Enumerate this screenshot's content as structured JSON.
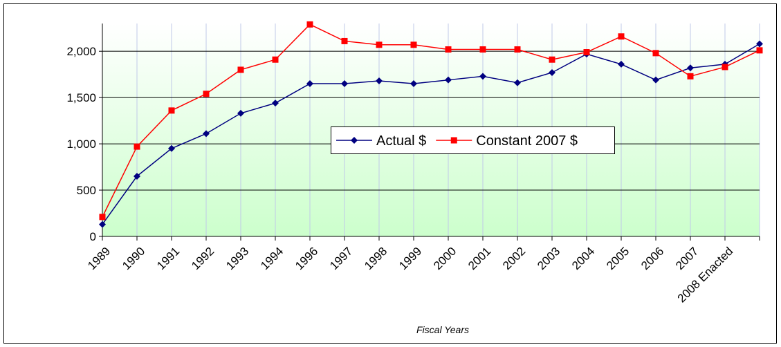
{
  "chart_data": {
    "type": "line",
    "x_label": "Fiscal Years",
    "categories": [
      "1989",
      "1990",
      "1991",
      "1992",
      "1993",
      "1994",
      "1996",
      "1997",
      "1998",
      "1999",
      "2000",
      "2001",
      "2002",
      "2003",
      "2004",
      "2005",
      "2006",
      "2007",
      "2008 Enacted",
      null
    ],
    "series": [
      {
        "name": "Actual $",
        "color": "#000080",
        "marker": "diamond",
        "values": [
          130,
          650,
          950,
          1110,
          1330,
          1440,
          1650,
          1650,
          1680,
          1650,
          1690,
          1730,
          1660,
          1770,
          1970,
          1860,
          1690,
          1820,
          1860,
          2080
        ]
      },
      {
        "name": "Constant 2007 $",
        "color": "#ff0000",
        "marker": "square",
        "values": [
          210,
          970,
          1360,
          1540,
          1800,
          1910,
          2290,
          2110,
          2070,
          2070,
          2020,
          2020,
          2020,
          1910,
          1990,
          2160,
          1980,
          1730,
          1830,
          2010
        ]
      }
    ],
    "ylim": [
      0,
      2300
    ],
    "yticks": [
      0,
      500,
      {
        "value": 1000,
        "label": "1,000"
      },
      {
        "value": 1500,
        "label": "1,500"
      },
      {
        "value": 2000,
        "label": "2,000"
      }
    ],
    "grid": true,
    "legend": "center"
  }
}
